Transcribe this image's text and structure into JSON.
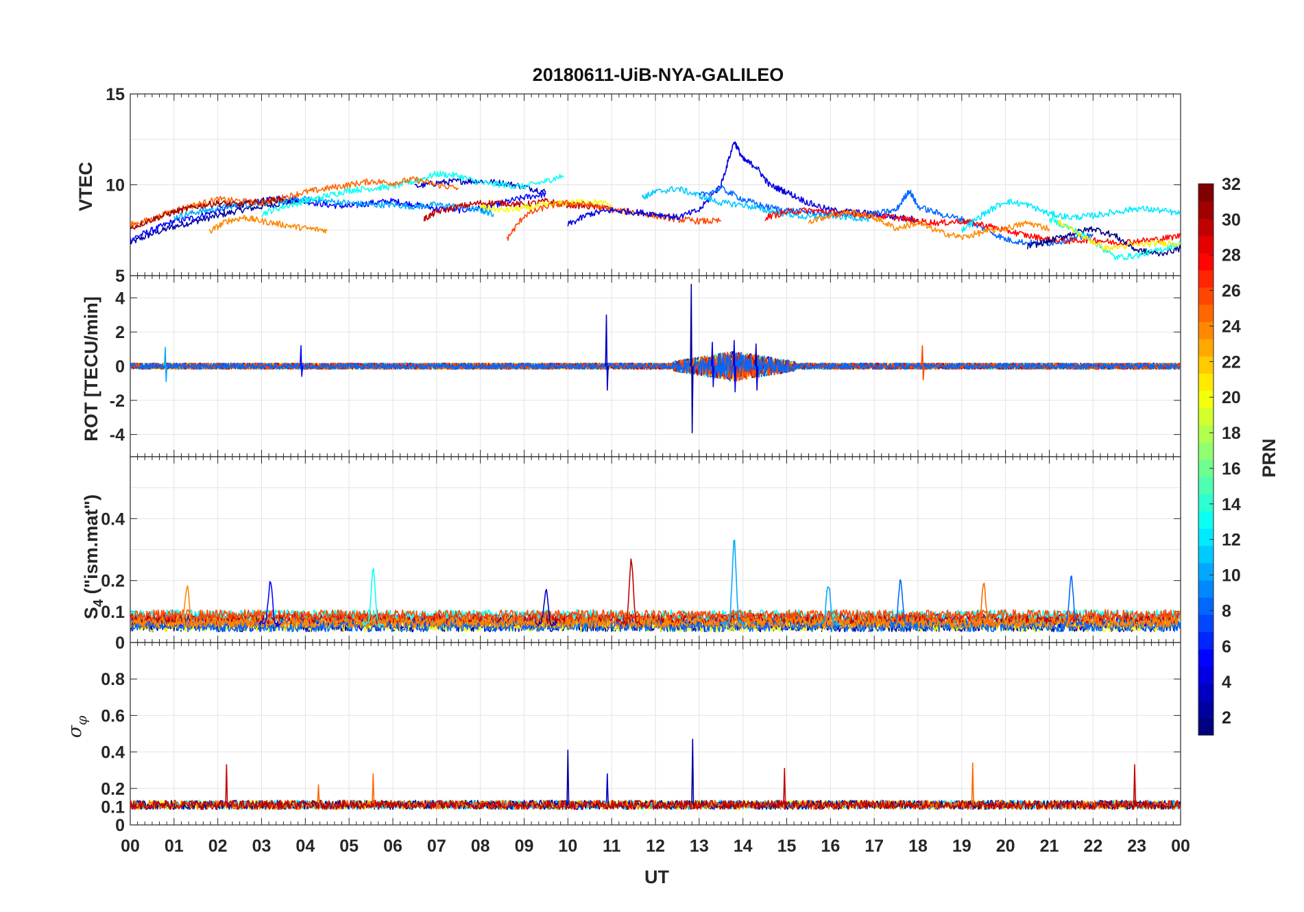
{
  "title": "20180611-UiB-NYA-GALILEO",
  "xlabel": "UT",
  "x_tick_labels": [
    "00",
    "01",
    "02",
    "03",
    "04",
    "05",
    "06",
    "07",
    "08",
    "09",
    "10",
    "11",
    "12",
    "13",
    "14",
    "15",
    "16",
    "17",
    "18",
    "19",
    "20",
    "21",
    "22",
    "23",
    "00"
  ],
  "colorbar": {
    "label": "PRN",
    "range": [
      1,
      32
    ],
    "tick_labels": [
      "2",
      "4",
      "6",
      "8",
      "10",
      "12",
      "14",
      "16",
      "18",
      "20",
      "22",
      "24",
      "26",
      "28",
      "30",
      "32"
    ],
    "colormap": "jet"
  },
  "panel_labels": {
    "vtec": "VTEC",
    "rot": "ROT [TECU/min]",
    "s4_main": "S",
    "s4_sub": "4",
    "s4_rest": " (\"ism.mat\")",
    "sigma_main": "σ",
    "sigma_sub": "φ"
  },
  "chart_data": [
    {
      "type": "line",
      "name": "VTEC",
      "xlabel": "",
      "ylabel": "VTEC",
      "xlim": [
        0,
        24
      ],
      "ylim": [
        5,
        15
      ],
      "yticks": [
        "5",
        "10",
        "15"
      ],
      "grid": true,
      "series": [
        {
          "prn": 2,
          "x": [
            0,
            0.5,
            1,
            1.5,
            2,
            2.5,
            3,
            3.5,
            4
          ],
          "y": [
            6.8,
            7.3,
            7.7,
            8.0,
            8.3,
            8.6,
            8.8,
            9.0,
            9.1
          ]
        },
        {
          "prn": 5,
          "x": [
            0,
            0.5,
            1,
            1.5,
            2,
            2.5,
            3,
            3.5,
            4,
            4.5,
            5,
            5.5,
            6,
            6.5,
            7,
            7.5,
            8,
            8.5,
            9,
            9.5
          ],
          "y": [
            7.0,
            7.5,
            8.0,
            8.2,
            8.6,
            8.9,
            9.1,
            9.3,
            9.1,
            8.9,
            8.8,
            9.0,
            9.1,
            8.9,
            8.7,
            8.6,
            8.7,
            9.0,
            9.3,
            9.5
          ]
        },
        {
          "prn": 3,
          "x": [
            6.5,
            7,
            7.5,
            8,
            8.5,
            9,
            9.5
          ],
          "y": [
            9.9,
            10.1,
            10.2,
            10.2,
            10.1,
            9.9,
            9.6
          ]
        },
        {
          "prn": 10,
          "x": [
            1,
            1.5,
            2,
            2.5,
            3,
            3.5,
            4,
            4.5,
            5,
            5.5,
            6,
            6.5,
            7,
            7.5,
            8,
            8.3
          ],
          "y": [
            8.2,
            8.5,
            8.7,
            8.9,
            9.0,
            9.1,
            9.2,
            9.1,
            9.0,
            8.9,
            8.9,
            8.8,
            8.9,
            8.8,
            8.6,
            8.4
          ]
        },
        {
          "prn": 13,
          "x": [
            3,
            3.5,
            4,
            4.5,
            5,
            5.5,
            6,
            6.5,
            7,
            7.5,
            8,
            8.5,
            9,
            9.5,
            9.9
          ],
          "y": [
            8.4,
            8.8,
            9.1,
            9.4,
            9.7,
            9.8,
            9.9,
            10.2,
            10.6,
            10.5,
            10.1,
            10.0,
            9.9,
            10.2,
            10.5
          ]
        },
        {
          "prn": 25,
          "x": [
            0,
            0.5,
            1,
            1.5,
            2,
            2.5,
            3,
            3.5,
            4,
            4.5,
            5,
            5.5,
            6,
            6.5,
            7,
            7.5
          ],
          "y": [
            7.8,
            8.1,
            8.6,
            8.9,
            9.2,
            9.1,
            9.0,
            9.3,
            9.6,
            9.8,
            10.0,
            10.2,
            10.1,
            10.3,
            10.0,
            9.8
          ]
        },
        {
          "prn": 24,
          "x": [
            1.8,
            2.2,
            2.6,
            3,
            3.5,
            4,
            4.5
          ],
          "y": [
            7.4,
            8.0,
            8.2,
            8.0,
            7.8,
            7.6,
            7.5
          ]
        },
        {
          "prn": 31,
          "x": [
            0,
            0.5,
            1,
            1.5,
            2,
            2.5,
            3,
            3.5
          ],
          "y": [
            7.6,
            8.1,
            8.5,
            8.8,
            9.0,
            8.9,
            9.1,
            9.2
          ]
        },
        {
          "prn": 30,
          "x": [
            6.7,
            7,
            7.5,
            8,
            8.5,
            9,
            9.5,
            10,
            10.5,
            11
          ],
          "y": [
            8.1,
            8.5,
            8.8,
            9.0,
            9.0,
            8.9,
            9.1,
            8.9,
            8.8,
            8.7
          ]
        },
        {
          "prn": 20,
          "x": [
            8,
            8.5,
            9,
            9.5,
            10,
            10.5,
            11
          ],
          "y": [
            8.8,
            8.6,
            8.7,
            8.9,
            9.0,
            9.1,
            8.9
          ]
        },
        {
          "prn": 26,
          "x": [
            8.6,
            9,
            9.5,
            10,
            10.5,
            11,
            11.5,
            12,
            12.5,
            13,
            13.5
          ],
          "y": [
            7.0,
            8.3,
            8.8,
            9.0,
            8.9,
            8.6,
            8.5,
            8.3,
            8.1,
            8.0,
            8.0
          ]
        },
        {
          "prn": 4,
          "x": [
            10,
            10.5,
            11,
            11.5,
            12,
            12.5,
            13,
            13.5,
            13.8,
            14,
            14.3,
            14.6,
            15,
            15.5,
            16,
            16.5,
            17,
            17.5,
            18
          ],
          "y": [
            7.8,
            8.4,
            8.6,
            8.5,
            8.4,
            8.2,
            8.6,
            10.0,
            12.4,
            11.4,
            11.0,
            10.0,
            9.6,
            9.0,
            8.6,
            8.5,
            8.4,
            8.2,
            8.1
          ]
        },
        {
          "prn": 11,
          "x": [
            11.7,
            12,
            12.5,
            13,
            13.5,
            14,
            14.5,
            15,
            15.5,
            16,
            16.5,
            17
          ],
          "y": [
            9.3,
            9.6,
            9.8,
            9.4,
            9.0,
            8.9,
            8.6,
            8.4,
            8.2,
            8.3,
            8.2,
            8.1
          ]
        },
        {
          "prn": 8,
          "x": [
            13,
            13.5,
            14,
            14.5,
            15,
            15.5,
            16,
            16.5,
            17,
            17.5,
            17.8,
            18,
            18.5,
            19,
            19.5,
            20,
            20.5,
            21,
            21.5,
            22
          ],
          "y": [
            9.4,
            9.8,
            9.2,
            8.8,
            8.6,
            8.5,
            8.4,
            8.3,
            8.4,
            8.6,
            9.7,
            8.8,
            8.4,
            8.1,
            7.6,
            7.0,
            6.8,
            6.8,
            7.0,
            7.2
          ]
        },
        {
          "prn": 28,
          "x": [
            14.5,
            15,
            15.5,
            16,
            16.5,
            17,
            17.5,
            18,
            18.5,
            19,
            19.5,
            20,
            20.5,
            21,
            21.5,
            22,
            22.5,
            23,
            23.5,
            24
          ],
          "y": [
            8.2,
            8.5,
            8.6,
            8.5,
            8.4,
            8.3,
            8.2,
            8.0,
            7.9,
            8.0,
            7.8,
            7.5,
            7.2,
            7.0,
            6.9,
            7.0,
            6.8,
            6.9,
            7.0,
            7.2
          ]
        },
        {
          "prn": 24,
          "x": [
            15.5,
            16,
            16.5,
            17,
            17.5,
            18,
            18.5,
            19,
            19.5,
            20,
            20.5,
            21
          ],
          "y": [
            8.0,
            8.3,
            8.5,
            8.2,
            7.6,
            7.9,
            7.4,
            7.1,
            7.4,
            7.6,
            7.9,
            7.6
          ]
        },
        {
          "prn": 12,
          "x": [
            19,
            19.5,
            20,
            20.5,
            21,
            21.5,
            22,
            22.5,
            23,
            23.5,
            24
          ],
          "y": [
            7.5,
            8.4,
            9.1,
            8.9,
            8.4,
            8.2,
            8.3,
            8.5,
            8.7,
            8.6,
            8.4
          ]
        },
        {
          "prn": 1,
          "x": [
            20.5,
            21,
            21.5,
            22,
            22.5,
            23,
            23.5,
            24
          ],
          "y": [
            6.6,
            6.9,
            7.3,
            7.6,
            7.2,
            6.4,
            6.2,
            6.5
          ]
        },
        {
          "prn": 13,
          "x": [
            21,
            21.5,
            22,
            22.5,
            23,
            23.5,
            24
          ],
          "y": [
            8.1,
            7.6,
            6.9,
            6.0,
            6.1,
            6.4,
            6.8
          ]
        },
        {
          "prn": 21,
          "x": [
            21.2,
            21.8,
            22.3,
            23,
            23.5,
            24
          ],
          "y": [
            8.0,
            7.1,
            6.5,
            6.7,
            6.8,
            6.8
          ]
        }
      ]
    },
    {
      "type": "line",
      "name": "ROT",
      "ylabel": "ROT [TECU/min]",
      "xlim": [
        0,
        24
      ],
      "ylim": [
        -5.3,
        5.3
      ],
      "yticks": [
        "-4",
        "-2",
        "0",
        "2",
        "4"
      ],
      "grid": true,
      "spikes": [
        {
          "x": 10.88,
          "ymax": 3.0,
          "ymin": -1.4,
          "prn": 3
        },
        {
          "x": 12.82,
          "ymax": 4.8,
          "ymin": -3.9,
          "prn": 2
        },
        {
          "x": 13.3,
          "ymax": 1.4,
          "ymin": -1.2,
          "prn": 4
        },
        {
          "x": 13.8,
          "ymax": 1.5,
          "ymin": -1.5,
          "prn": 4
        },
        {
          "x": 14.3,
          "ymax": 1.3,
          "ymin": -1.4,
          "prn": 3
        },
        {
          "x": 3.9,
          "ymax": 1.2,
          "ymin": -0.6,
          "prn": 5
        },
        {
          "x": 0.8,
          "ymax": 1.1,
          "ymin": -0.9,
          "prn": 10
        },
        {
          "x": 18.1,
          "ymax": 1.2,
          "ymin": -0.8,
          "prn": 26
        }
      ]
    },
    {
      "type": "line",
      "name": "S4",
      "ylabel": "S4 (\"ism.mat\")",
      "xlim": [
        0,
        24
      ],
      "ylim": [
        0,
        0.6
      ],
      "yticks": [
        "0",
        "0.1",
        "0.2",
        "0.4"
      ],
      "grid": true,
      "peaks": [
        {
          "x": 11.45,
          "y": 0.265,
          "prn": 30
        },
        {
          "x": 13.8,
          "y": 0.33,
          "prn": 10
        },
        {
          "x": 5.55,
          "y": 0.235,
          "prn": 13
        },
        {
          "x": 3.2,
          "y": 0.2,
          "prn": 5
        },
        {
          "x": 1.3,
          "y": 0.18,
          "prn": 24
        },
        {
          "x": 9.5,
          "y": 0.17,
          "prn": 3
        },
        {
          "x": 17.6,
          "y": 0.2,
          "prn": 8
        },
        {
          "x": 19.5,
          "y": 0.19,
          "prn": 25
        },
        {
          "x": 21.5,
          "y": 0.21,
          "prn": 8
        },
        {
          "x": 15.95,
          "y": 0.19,
          "prn": 10
        }
      ]
    },
    {
      "type": "line",
      "name": "sigma_phi",
      "ylabel": "σφ",
      "xlim": [
        0,
        24
      ],
      "ylim": [
        0,
        1.0
      ],
      "yticks": [
        "0",
        "0.1",
        "0.2",
        "0.4",
        "0.6",
        "0.8"
      ],
      "grid": true,
      "peaks": [
        {
          "x": 2.2,
          "y": 0.33,
          "prn": 30
        },
        {
          "x": 4.3,
          "y": 0.22,
          "prn": 25
        },
        {
          "x": 5.55,
          "y": 0.28,
          "prn": 25
        },
        {
          "x": 10.0,
          "y": 0.41,
          "prn": 2
        },
        {
          "x": 10.9,
          "y": 0.28,
          "prn": 3
        },
        {
          "x": 12.85,
          "y": 0.47,
          "prn": 2
        },
        {
          "x": 14.95,
          "y": 0.31,
          "prn": 30
        },
        {
          "x": 19.25,
          "y": 0.34,
          "prn": 25
        },
        {
          "x": 22.95,
          "y": 0.33,
          "prn": 30
        }
      ]
    }
  ]
}
